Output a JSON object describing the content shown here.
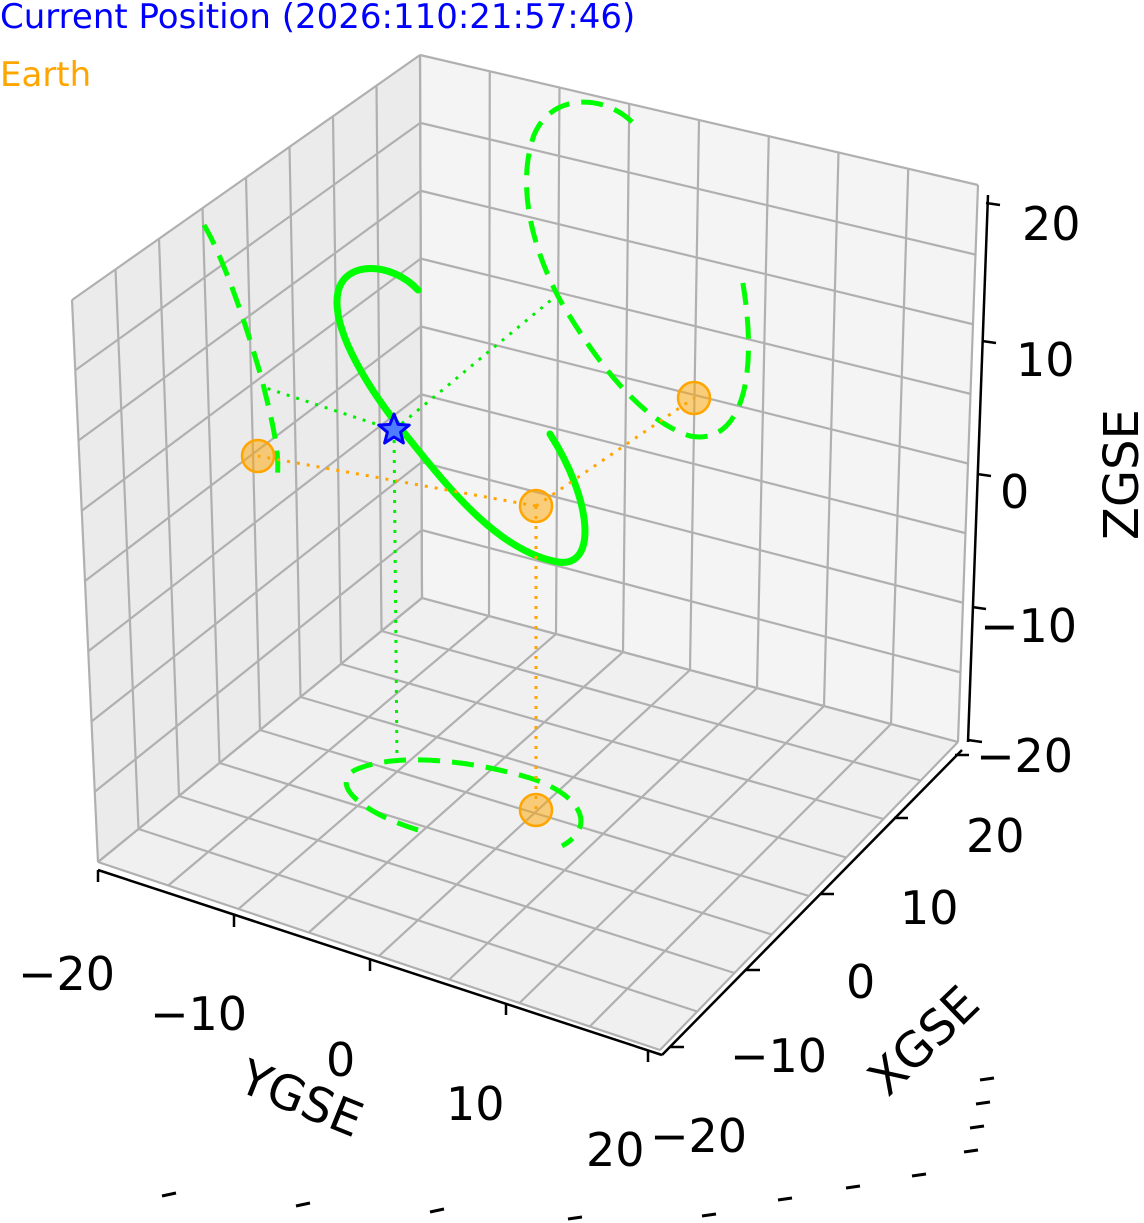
{
  "legend": {
    "current_position": "Current Position (2026:110:21:57:46)",
    "earth": "Earth"
  },
  "colors": {
    "orbit": "#00ff00",
    "current_position": "#0000ff",
    "earth": "#ffa500",
    "pane_floor": "#f2f2f2",
    "pane_left": "#ebebeb",
    "pane_back": "#f4f4f4",
    "grid": "#b0b0b0"
  },
  "chart_data": {
    "type": "scatter",
    "projection": "3d",
    "axes": {
      "x": {
        "label": "XGSE",
        "range": [
          -20,
          20
        ],
        "ticks": [
          "−20",
          "−10",
          "0",
          "10",
          "20"
        ]
      },
      "y": {
        "label": "YGSE",
        "range": [
          -20,
          20
        ],
        "ticks": [
          "−20",
          "−10",
          "0",
          "10",
          "20"
        ]
      },
      "z": {
        "label": "ZGSE",
        "range": [
          -20,
          20
        ],
        "ticks": [
          "−20",
          "−10",
          "0",
          "10",
          "20"
        ]
      }
    },
    "grid": true,
    "series": [
      {
        "name": "Current Position (2026:110:21:57:46)",
        "marker": "star",
        "points": [
          [
            10.1,
            -6.3,
            6.7
          ]
        ]
      },
      {
        "name": "Earth",
        "marker": "circle",
        "points": [
          [
            0,
            0,
            0
          ]
        ]
      }
    ]
  }
}
